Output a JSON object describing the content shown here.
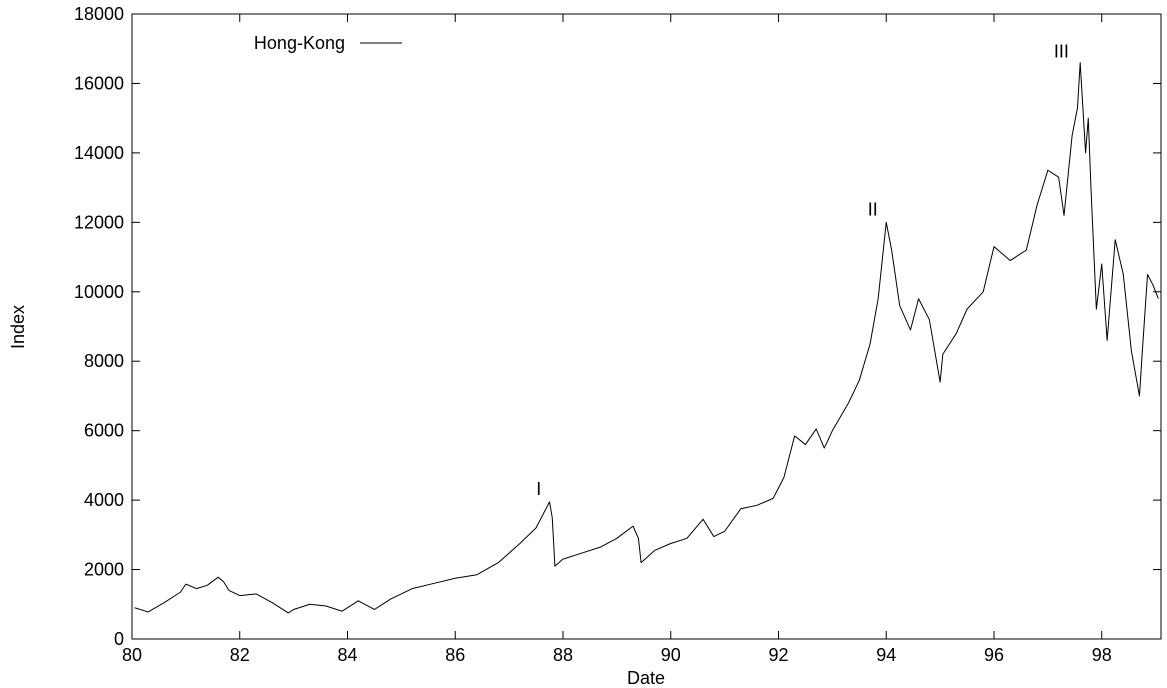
{
  "chart_data": {
    "type": "line",
    "title": "",
    "xlabel": "Date",
    "ylabel": "Index",
    "xlim": [
      80,
      99.1
    ],
    "ylim": [
      0,
      18000
    ],
    "x_ticks": [
      80,
      82,
      84,
      86,
      88,
      90,
      92,
      94,
      96,
      98
    ],
    "y_ticks": [
      0,
      2000,
      4000,
      6000,
      8000,
      10000,
      12000,
      14000,
      16000,
      18000
    ],
    "grid": false,
    "legend_position": "top-left",
    "series": [
      {
        "name": "Hong-Kong",
        "color": "#000000",
        "x": [
          80.05,
          80.3,
          80.6,
          80.9,
          81.0,
          81.2,
          81.4,
          81.6,
          81.7,
          81.8,
          82.0,
          82.3,
          82.6,
          82.9,
          83.0,
          83.3,
          83.6,
          83.9,
          84.2,
          84.5,
          84.8,
          85.2,
          85.6,
          86.0,
          86.4,
          86.8,
          87.2,
          87.5,
          87.75,
          87.8,
          87.85,
          88.0,
          88.3,
          88.7,
          89.0,
          89.3,
          89.4,
          89.45,
          89.7,
          90.0,
          90.3,
          90.6,
          90.8,
          91.0,
          91.3,
          91.6,
          91.9,
          92.1,
          92.3,
          92.5,
          92.7,
          92.85,
          93.0,
          93.3,
          93.5,
          93.7,
          93.85,
          94.0,
          94.1,
          94.25,
          94.45,
          94.6,
          94.8,
          95.0,
          95.05,
          95.3,
          95.5,
          95.8,
          96.0,
          96.3,
          96.6,
          96.8,
          97.0,
          97.2,
          97.3,
          97.45,
          97.55,
          97.6,
          97.7,
          97.75,
          97.8,
          97.9,
          98.0,
          98.1,
          98.25,
          98.4,
          98.55,
          98.7,
          98.75,
          98.85,
          98.95,
          99.05
        ],
        "y": [
          900,
          780,
          1050,
          1350,
          1580,
          1450,
          1550,
          1780,
          1650,
          1400,
          1250,
          1300,
          1050,
          750,
          850,
          1000,
          950,
          800,
          1100,
          850,
          1150,
          1450,
          1600,
          1750,
          1850,
          2200,
          2750,
          3200,
          3950,
          3500,
          2100,
          2300,
          2450,
          2650,
          2900,
          3250,
          2900,
          2200,
          2550,
          2750,
          2900,
          3450,
          2950,
          3100,
          3750,
          3850,
          4050,
          4650,
          5850,
          5600,
          6050,
          5500,
          6000,
          6800,
          7450,
          8500,
          9800,
          12000,
          11200,
          9600,
          8900,
          9800,
          9200,
          7400,
          8200,
          8800,
          9500,
          10000,
          11300,
          10900,
          11200,
          12500,
          13500,
          13300,
          12200,
          14500,
          15300,
          16600,
          14000,
          15000,
          13000,
          9500,
          10800,
          8600,
          11500,
          10500,
          8300,
          7000,
          8200,
          10500,
          10200,
          9800
        ]
      }
    ],
    "annotations": [
      {
        "text": "I",
        "x": 87.55,
        "y": 4150
      },
      {
        "text": "II",
        "x": 93.75,
        "y": 12200
      },
      {
        "text": "III",
        "x": 97.25,
        "y": 16750
      }
    ]
  }
}
